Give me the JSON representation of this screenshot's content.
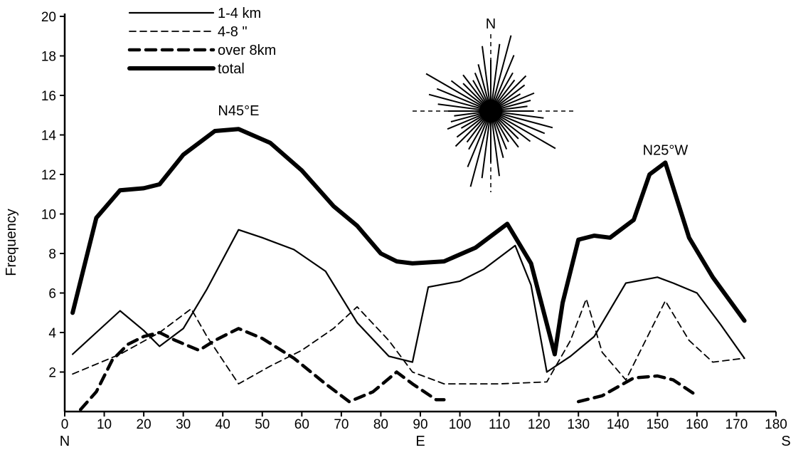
{
  "chart_data": {
    "type": "line",
    "ylabel": "Frequency",
    "ylim": [
      0,
      20
    ],
    "xlim": [
      0,
      180
    ],
    "y_ticks": [
      "2",
      "4",
      "6",
      "8",
      "10",
      "12",
      "14",
      "16",
      "18",
      "20"
    ],
    "x_ticks": [
      "0",
      "10",
      "20",
      "30",
      "40",
      "50",
      "60",
      "70",
      "80",
      "90",
      "100",
      "110",
      "120",
      "130",
      "140",
      "150",
      "160",
      "170",
      "180"
    ],
    "x_direction_labels": [
      {
        "x": 0,
        "text": "N"
      },
      {
        "x": 90,
        "text": "E"
      },
      {
        "x": 180,
        "text": "S"
      }
    ],
    "annotations": [
      {
        "text": "N45°E",
        "x": 44,
        "y": 15
      },
      {
        "text": "N25°W",
        "x": 152,
        "y": 13
      }
    ],
    "rose_label": "N",
    "legend_position": "top-left",
    "series": [
      {
        "name": "1-4 km",
        "style": "solid",
        "color": "#000000",
        "x": [
          2,
          8,
          14,
          20,
          24,
          30,
          36,
          44,
          50,
          58,
          66,
          74,
          82,
          88,
          92,
          100,
          106,
          114,
          118,
          122,
          128,
          134,
          142,
          150,
          154,
          160,
          166,
          172
        ],
        "y": [
          2.9,
          4,
          5.1,
          4.1,
          3.3,
          4.2,
          6.2,
          9.2,
          8.8,
          8.2,
          7.1,
          4.5,
          2.8,
          2.5,
          6.3,
          6.6,
          7.2,
          8.4,
          6.4,
          2.0,
          2.8,
          3.8,
          6.5,
          6.8,
          6.5,
          6.0,
          4.4,
          2.7
        ]
      },
      {
        "name": "4-8 \"",
        "style": "dashed",
        "color": "#000000",
        "x": [
          2,
          14,
          24,
          32,
          36,
          44,
          52,
          60,
          68,
          74,
          82,
          88,
          96,
          110,
          122,
          128,
          132,
          136,
          142,
          152,
          158,
          164,
          172
        ],
        "y": [
          1.9,
          2.9,
          4.0,
          5.2,
          3.8,
          1.4,
          2.3,
          3.1,
          4.2,
          5.3,
          3.6,
          2.0,
          1.4,
          1.4,
          1.5,
          3.6,
          5.7,
          3.0,
          1.6,
          5.6,
          3.6,
          2.5,
          2.7
        ]
      },
      {
        "name": "over 8km",
        "style": "dashed-thick",
        "color": "#000000",
        "x": [
          4,
          8,
          12,
          16,
          20,
          24,
          28,
          34,
          38,
          44,
          50,
          58,
          66,
          72,
          78,
          84,
          88,
          94,
          96
        ],
        "y": [
          0.1,
          1.0,
          2.6,
          3.4,
          3.8,
          4.0,
          3.6,
          3.1,
          3.6,
          4.2,
          3.7,
          2.7,
          1.4,
          0.5,
          1.0,
          2.0,
          1.4,
          0.6,
          0.6
        ]
      },
      {
        "name": "over 8km",
        "style": "dashed-thick",
        "color": "#000000",
        "x": [
          130,
          136,
          144,
          150,
          154,
          160
        ],
        "y": [
          0.5,
          0.8,
          1.7,
          1.8,
          1.6,
          0.8
        ]
      },
      {
        "name": "total",
        "style": "thick",
        "color": "#000000",
        "x": [
          2,
          8,
          14,
          20,
          24,
          30,
          38,
          44,
          52,
          60,
          68,
          74,
          80,
          84,
          88,
          96,
          104,
          112,
          118,
          124,
          126,
          130,
          134,
          138,
          144,
          148,
          152,
          158,
          164,
          172
        ],
        "y": [
          5.0,
          9.8,
          11.2,
          11.3,
          11.5,
          13.0,
          14.2,
          14.3,
          13.6,
          12.2,
          10.4,
          9.4,
          8.0,
          7.6,
          7.5,
          7.6,
          8.3,
          9.5,
          7.5,
          2.9,
          5.5,
          8.7,
          8.9,
          8.8,
          9.7,
          12.0,
          12.6,
          8.8,
          6.8,
          4.6
        ]
      }
    ]
  }
}
